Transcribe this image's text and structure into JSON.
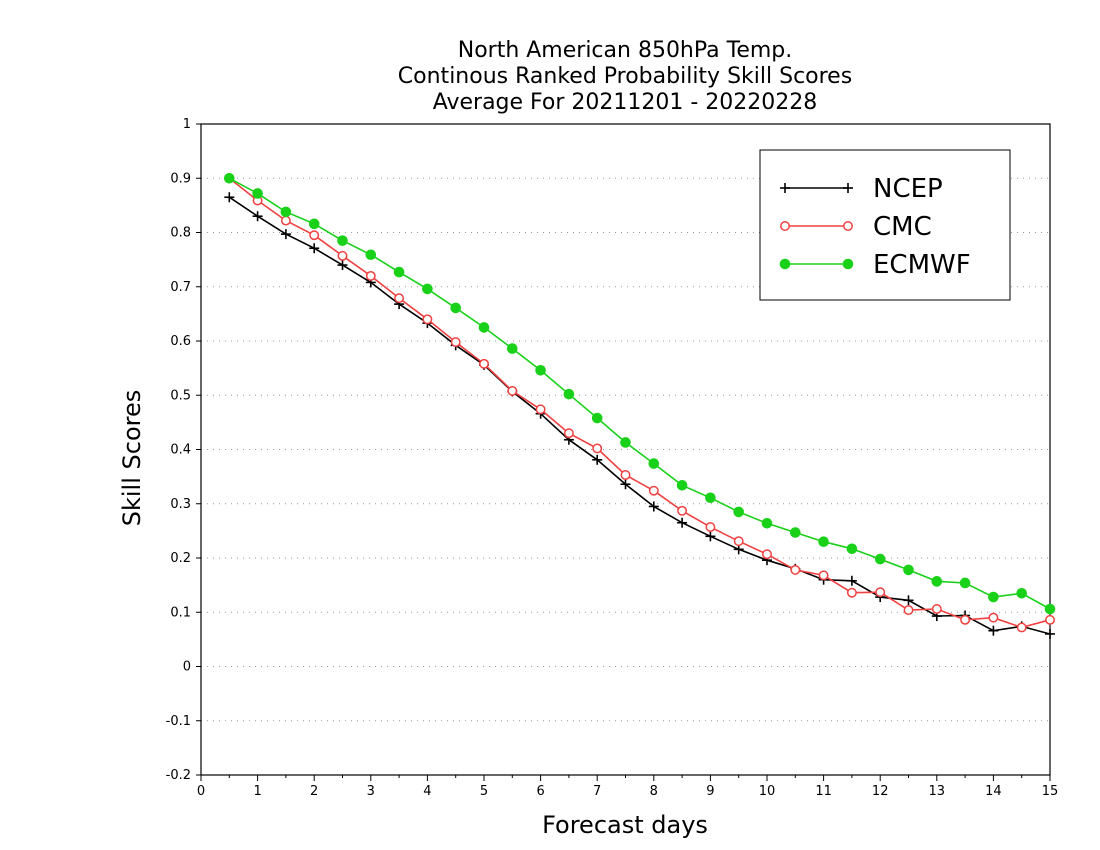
{
  "chart_data": {
    "type": "line",
    "title_lines": [
      "North American 850hPa Temp.",
      "Continous Ranked Probability Skill Scores",
      "Average For 20211201 - 20220228"
    ],
    "xlabel": "Forecast days",
    "ylabel": "Skill Scores",
    "xlim": [
      0,
      15
    ],
    "ylim": [
      -0.2,
      1
    ],
    "x_ticks": [
      "0",
      "1",
      "2",
      "3",
      "4",
      "5",
      "6",
      "7",
      "8",
      "9",
      "10",
      "11",
      "12",
      "13",
      "14",
      "15"
    ],
    "y_ticks": [
      "1",
      "0.9",
      "0.8",
      "0.7",
      "0.6",
      "0.5",
      "0.4",
      "0.3",
      "0.2",
      "0.1",
      "0",
      "-0.1",
      "-0.2"
    ],
    "grid": "horizontal dotted",
    "legend_position": "top-right",
    "x": [
      0.5,
      1,
      1.5,
      2,
      2.5,
      3,
      3.5,
      4,
      4.5,
      5,
      5.5,
      6,
      6.5,
      7,
      7.5,
      8,
      8.5,
      9,
      9.5,
      10,
      10.5,
      11,
      11.5,
      12,
      12.5,
      13,
      13.5,
      14,
      14.5,
      15
    ],
    "series": [
      {
        "name": "NCEP",
        "color": "#000000",
        "marker": "plus",
        "values": [
          0.865,
          0.83,
          0.797,
          0.771,
          0.74,
          0.708,
          0.668,
          0.633,
          0.592,
          0.556,
          0.507,
          0.466,
          0.418,
          0.381,
          0.336,
          0.295,
          0.265,
          0.24,
          0.216,
          0.196,
          0.18,
          0.16,
          0.158,
          0.128,
          0.122,
          0.093,
          0.094,
          0.066,
          0.074,
          0.06
        ]
      },
      {
        "name": "CMC",
        "color": "#f04040",
        "marker": "open-circle",
        "values": [
          0.9,
          0.859,
          0.822,
          0.795,
          0.757,
          0.72,
          0.679,
          0.64,
          0.598,
          0.558,
          0.508,
          0.474,
          0.43,
          0.402,
          0.353,
          0.324,
          0.287,
          0.257,
          0.231,
          0.207,
          0.178,
          0.168,
          0.136,
          0.137,
          0.104,
          0.106,
          0.086,
          0.09,
          0.072,
          0.086
        ]
      },
      {
        "name": "ECMWF",
        "color": "#1ad11a",
        "marker": "filled-circle",
        "values": [
          0.9,
          0.872,
          0.838,
          0.816,
          0.785,
          0.759,
          0.727,
          0.696,
          0.661,
          0.625,
          0.586,
          0.546,
          0.502,
          0.458,
          0.413,
          0.374,
          0.334,
          0.311,
          0.285,
          0.264,
          0.247,
          0.23,
          0.217,
          0.198,
          0.178,
          0.157,
          0.154,
          0.128,
          0.135,
          0.106
        ]
      }
    ]
  }
}
